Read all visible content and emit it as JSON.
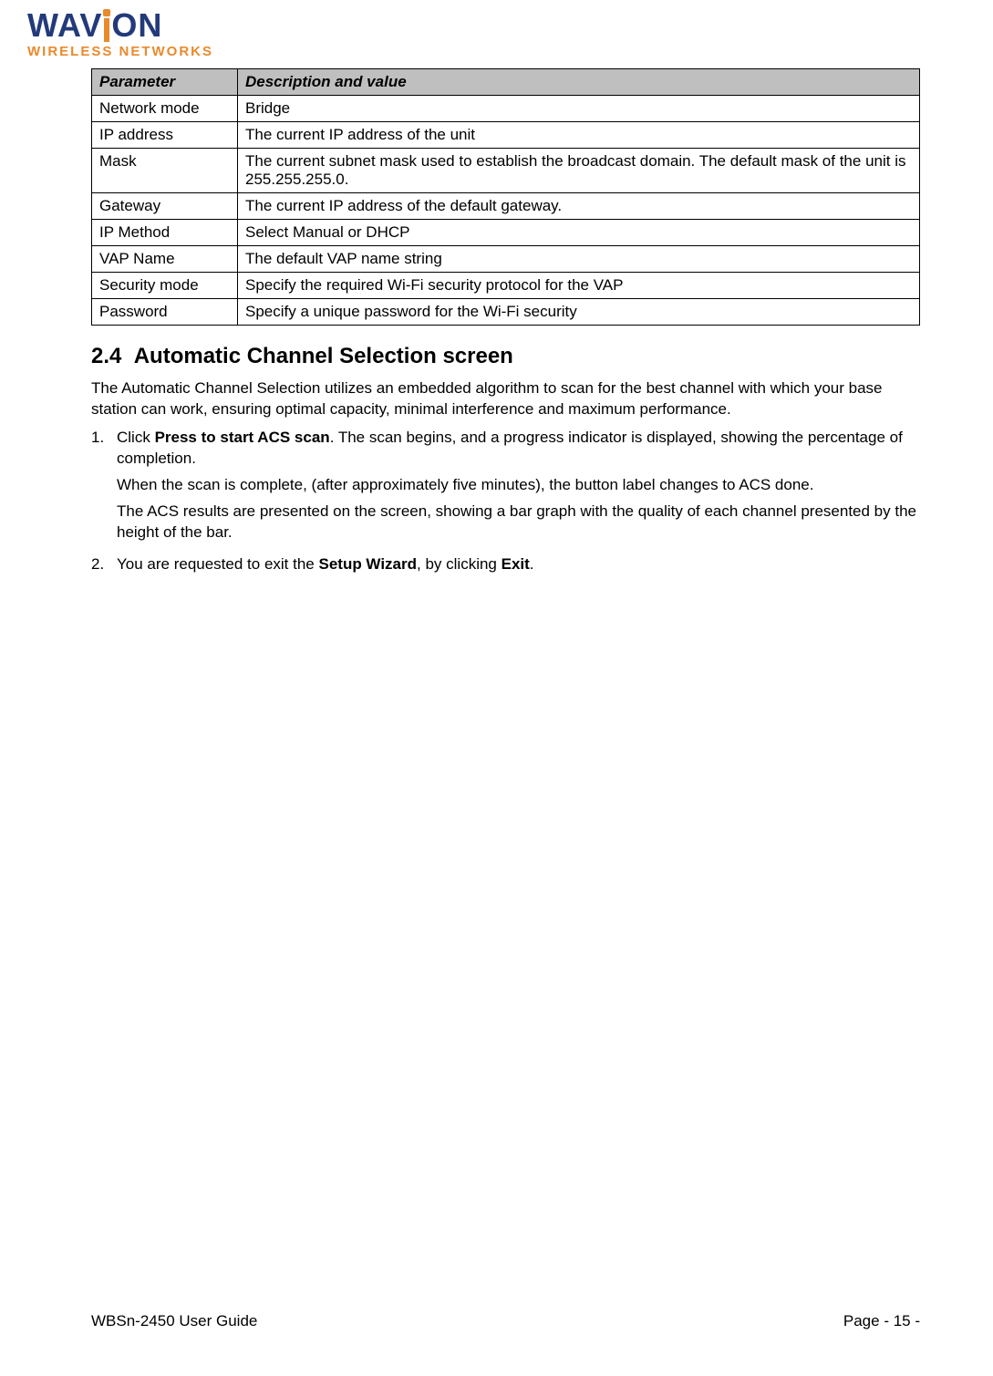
{
  "logo": {
    "brand_left": "WAV",
    "brand_right": "ON",
    "subtitle": "WIRELESS NETWORKS",
    "brand_color": "#233a7a",
    "accent_color": "#e98a2b"
  },
  "table": {
    "header_bg": "#bfbfbf",
    "border_color": "#000000",
    "columns": [
      "Parameter",
      "Description and value"
    ],
    "rows": [
      [
        "Network mode",
        "Bridge"
      ],
      [
        "IP address",
        "The current IP address of the unit"
      ],
      [
        "Mask",
        "The current subnet mask used to establish the broadcast domain. The default mask of the unit is 255.255.255.0."
      ],
      [
        "Gateway",
        "The current IP address of the default gateway."
      ],
      [
        "IP Method",
        "Select Manual or DHCP"
      ],
      [
        "VAP Name",
        "The default VAP name string"
      ],
      [
        "Security mode",
        "Specify the required Wi-Fi security protocol for the VAP"
      ],
      [
        "Password",
        "Specify a unique password for the Wi-Fi security"
      ]
    ]
  },
  "section": {
    "number": "2.4",
    "title": "Automatic Channel Selection screen",
    "intro": "The Automatic Channel Selection utilizes an embedded algorithm to scan for the best channel with which your base station can work, ensuring optimal capacity, minimal interference and maximum performance.",
    "steps": [
      {
        "num": "1.",
        "parts": [
          {
            "plain_pre": "Click ",
            "bold": "Press to start ACS scan",
            "plain_post": ". The scan begins, and a progress indicator is displayed, showing the percentage of completion."
          },
          {
            "plain_pre": "When the scan is complete, (after approximately five minutes), the button label changes to ACS done.",
            "bold": "",
            "plain_post": ""
          },
          {
            "plain_pre": "The ACS results are presented on the screen, showing a bar graph with the quality of each channel presented by the height of the bar.",
            "bold": "",
            "plain_post": ""
          }
        ]
      },
      {
        "num": "2.",
        "parts": [
          {
            "plain_pre": "You are requested to exit the ",
            "bold": "Setup Wizard",
            "plain_post": ", by clicking ",
            "bold2": "Exit",
            "plain_post2": "."
          }
        ]
      }
    ]
  },
  "footer": {
    "left": "WBSn-2450 User Guide",
    "right": "Page - 15 -"
  }
}
